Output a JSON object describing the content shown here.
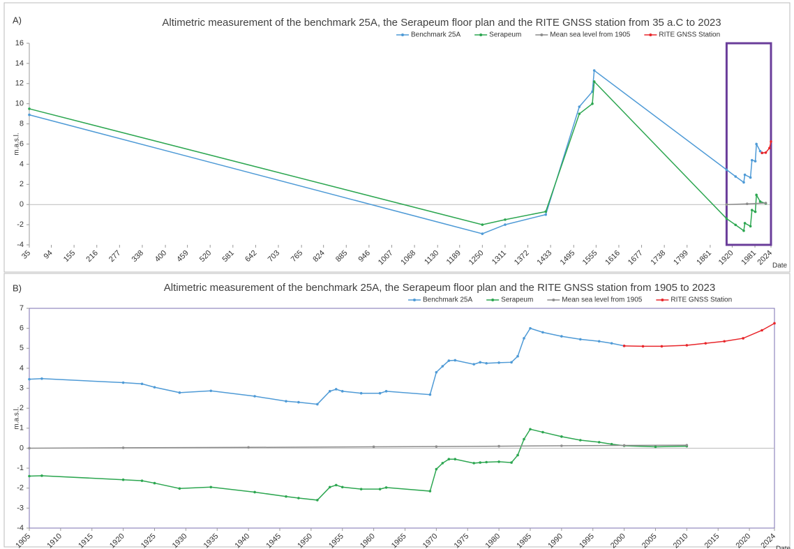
{
  "chart_data": [
    {
      "type": "line",
      "panel": "A)",
      "title": "Altimetric measurement of the benchmark 25A, the Serapeum floor plan and the RITE GNSS station from 35 a.C  to 2023",
      "ylabel": "m.a.s.l.",
      "xlabel": "Date",
      "legend": "top",
      "xlim": [
        35,
        2024
      ],
      "xticks": [
        35,
        94,
        155,
        216,
        277,
        338,
        400,
        459,
        520,
        581,
        642,
        703,
        765,
        824,
        885,
        946,
        1007,
        1068,
        1130,
        1189,
        1250,
        1311,
        1372,
        1433,
        1495,
        1555,
        1616,
        1677,
        1738,
        1799,
        1861,
        1920,
        1981,
        2024
      ],
      "ylim": [
        -4,
        16
      ],
      "yticks": [
        -4,
        -2,
        0,
        2,
        4,
        6,
        8,
        10,
        12,
        14,
        16
      ],
      "series": [
        {
          "name": "Benchmark 25A",
          "color": "#4e9ad6",
          "x": [
            35,
            1250,
            1311,
            1420,
            1510,
            1545,
            1550,
            1905,
            1929,
            1951,
            1954,
            1969,
            1973,
            1982,
            1985,
            1995,
            2000
          ],
          "values": [
            8.9,
            -2.9,
            -2.0,
            -1.0,
            9.7,
            11.2,
            13.3,
            3.45,
            2.78,
            2.2,
            2.95,
            2.68,
            4.4,
            4.3,
            6.0,
            5.3,
            5.12
          ]
        },
        {
          "name": "Serapeum",
          "color": "#2ca650",
          "x": [
            35,
            1250,
            1311,
            1420,
            1510,
            1545,
            1550,
            1905,
            1929,
            1951,
            1954,
            1969,
            1973,
            1982,
            1985,
            1995,
            2010
          ],
          "values": [
            9.5,
            -2.0,
            -1.5,
            -0.7,
            9.0,
            10.0,
            12.2,
            -1.4,
            -2.02,
            -2.6,
            -1.85,
            -2.15,
            -0.55,
            -0.72,
            0.95,
            0.3,
            0.1
          ]
        },
        {
          "name": "Mean sea level from 1905",
          "color": "#8c8c8c",
          "x": [
            1905,
            1960,
            2010
          ],
          "values": [
            0,
            0.07,
            0.15
          ]
        },
        {
          "name": "RITE GNSS  Station",
          "color": "#e8262b",
          "x": [
            2000,
            2010,
            2020,
            2024
          ],
          "values": [
            5.12,
            5.15,
            5.6,
            6.25
          ]
        }
      ]
    },
    {
      "type": "line",
      "panel": "B)",
      "title": "Altimetric measurement of the benchmark 25A, the Serapeum floor plan and the RITE GNSS station from 1905  to 2023",
      "ylabel": "m.a.s.l.",
      "xlabel": "Date",
      "legend": "top",
      "xlim": [
        1905,
        2024
      ],
      "xticks": [
        1905,
        1910,
        1915,
        1920,
        1925,
        1930,
        1935,
        1940,
        1945,
        1950,
        1955,
        1960,
        1965,
        1970,
        1975,
        1980,
        1985,
        1990,
        1995,
        2000,
        2005,
        2010,
        2015,
        2020,
        2024
      ],
      "ylim": [
        -4,
        7
      ],
      "yticks": [
        -4,
        -3,
        -2,
        -1,
        0,
        1,
        2,
        3,
        4,
        5,
        6,
        7
      ],
      "series": [
        {
          "name": "Benchmark 25A",
          "color": "#4e9ad6",
          "x": [
            1905,
            1907,
            1920,
            1923,
            1925,
            1929,
            1934,
            1941,
            1946,
            1948,
            1951,
            1953,
            1954,
            1955,
            1958,
            1961,
            1962,
            1969,
            1970,
            1971,
            1972,
            1973,
            1976,
            1977,
            1978,
            1980,
            1982,
            1983,
            1984,
            1985,
            1987,
            1990,
            1993,
            1996,
            1998,
            2000
          ],
          "values": [
            3.45,
            3.48,
            3.28,
            3.22,
            3.05,
            2.78,
            2.87,
            2.6,
            2.35,
            2.3,
            2.2,
            2.85,
            2.95,
            2.85,
            2.75,
            2.75,
            2.85,
            2.68,
            3.8,
            4.1,
            4.38,
            4.4,
            4.2,
            4.3,
            4.25,
            4.28,
            4.3,
            4.6,
            5.5,
            6.0,
            5.8,
            5.6,
            5.45,
            5.35,
            5.25,
            5.12
          ]
        },
        {
          "name": "Serapeum",
          "color": "#2ca650",
          "x": [
            1905,
            1907,
            1920,
            1923,
            1925,
            1929,
            1934,
            1941,
            1946,
            1948,
            1951,
            1953,
            1954,
            1955,
            1958,
            1961,
            1962,
            1969,
            1970,
            1971,
            1972,
            1973,
            1976,
            1977,
            1978,
            1980,
            1982,
            1983,
            1984,
            1985,
            1987,
            1990,
            1993,
            1996,
            1998,
            2000,
            2005,
            2010
          ],
          "values": [
            -1.4,
            -1.38,
            -1.58,
            -1.63,
            -1.75,
            -2.02,
            -1.95,
            -2.2,
            -2.42,
            -2.5,
            -2.6,
            -1.95,
            -1.85,
            -1.95,
            -2.05,
            -2.05,
            -1.97,
            -2.15,
            -1.05,
            -0.75,
            -0.55,
            -0.55,
            -0.75,
            -0.72,
            -0.7,
            -0.68,
            -0.72,
            -0.35,
            0.45,
            0.95,
            0.8,
            0.58,
            0.4,
            0.3,
            0.2,
            0.12,
            0.07,
            0.1
          ]
        },
        {
          "name": "Mean sea level from 1905",
          "color": "#8c8c8c",
          "x": [
            1905,
            1920,
            1940,
            1960,
            1970,
            1980,
            1990,
            2000,
            2010
          ],
          "values": [
            0,
            0.02,
            0.04,
            0.07,
            0.08,
            0.1,
            0.12,
            0.14,
            0.15
          ]
        },
        {
          "name": "RITE GNSS Station",
          "color": "#e8262b",
          "x": [
            2000,
            2003,
            2006,
            2010,
            2013,
            2016,
            2019,
            2022,
            2024
          ],
          "values": [
            5.12,
            5.1,
            5.1,
            5.15,
            5.25,
            5.35,
            5.5,
            5.9,
            6.25
          ]
        }
      ]
    }
  ]
}
